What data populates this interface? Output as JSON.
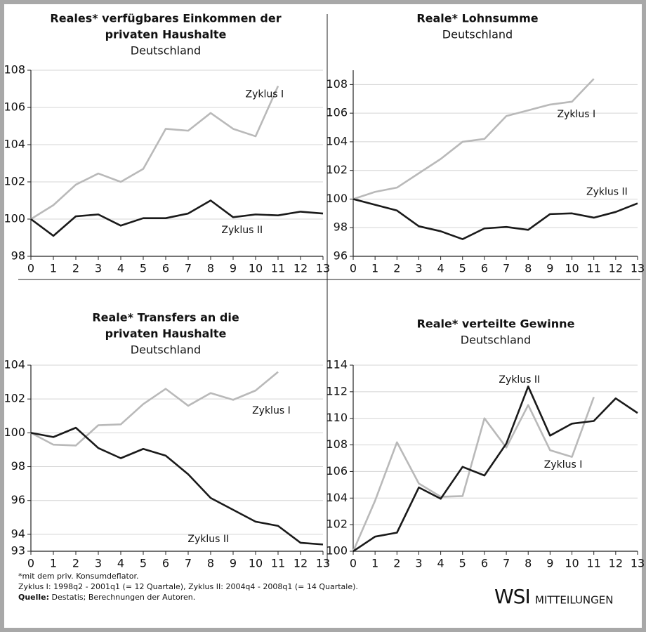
{
  "chart_data": [
    {
      "type": "line",
      "title": [
        "Reales* verfügbares Einkommen der",
        "privaten Haushalte"
      ],
      "subtitle": "Deutschland",
      "x": [
        0,
        1,
        2,
        3,
        4,
        5,
        6,
        7,
        8,
        9,
        10,
        11,
        12,
        13
      ],
      "series": [
        {
          "name": "Zyklus I",
          "color": "#b9b9b9",
          "values": [
            100,
            100.75,
            101.85,
            102.45,
            102,
            102.7,
            104.85,
            104.75,
            105.7,
            104.85,
            104.45,
            107.15,
            null,
            null
          ]
        },
        {
          "name": "Zyklus II",
          "color": "#1a1a1a",
          "values": [
            100,
            99.1,
            100.15,
            100.25,
            99.65,
            100.05,
            100.05,
            100.3,
            101,
            100.1,
            100.25,
            100.2,
            100.4,
            100.3
          ]
        }
      ],
      "xlim": [
        0,
        13
      ],
      "xticks": [
        0,
        1,
        2,
        3,
        4,
        5,
        6,
        7,
        8,
        9,
        10,
        11,
        12,
        13
      ],
      "ylim": [
        98,
        108
      ],
      "yticks": [
        98,
        100,
        102,
        104,
        106,
        108
      ],
      "grid": true
    },
    {
      "type": "line",
      "title": [
        "Reale* Lohnsumme"
      ],
      "subtitle": "Deutschland",
      "x": [
        0,
        1,
        2,
        3,
        4,
        5,
        6,
        7,
        8,
        9,
        10,
        11,
        12,
        13
      ],
      "series": [
        {
          "name": "Zyklus I",
          "color": "#b9b9b9",
          "values": [
            100,
            100.5,
            100.8,
            101.8,
            102.8,
            104,
            104.2,
            105.8,
            106.2,
            106.6,
            106.8,
            108.4,
            null,
            null
          ]
        },
        {
          "name": "Zyklus II",
          "color": "#1a1a1a",
          "values": [
            100,
            99.6,
            99.2,
            98.1,
            97.75,
            97.2,
            97.95,
            98.05,
            97.85,
            98.95,
            99,
            98.7,
            99.1,
            99.7
          ]
        }
      ],
      "xlim": [
        0,
        13
      ],
      "xticks": [
        0,
        1,
        2,
        3,
        4,
        5,
        6,
        7,
        8,
        9,
        10,
        11,
        12,
        13
      ],
      "ylim": [
        96,
        109
      ],
      "yticks": [
        96,
        98,
        100,
        102,
        104,
        106,
        108
      ],
      "grid": true
    },
    {
      "type": "line",
      "title": [
        "Reale* Transfers an die",
        "privaten Haushalte"
      ],
      "subtitle": "Deutschland",
      "x": [
        0,
        1,
        2,
        3,
        4,
        5,
        6,
        7,
        8,
        9,
        10,
        11,
        12,
        13
      ],
      "series": [
        {
          "name": "Zyklus I",
          "color": "#b9b9b9",
          "values": [
            100,
            99.3,
            99.25,
            100.45,
            100.5,
            101.7,
            102.6,
            101.6,
            102.35,
            101.95,
            102.5,
            103.6,
            null,
            null
          ]
        },
        {
          "name": "Zyklus II",
          "color": "#1a1a1a",
          "values": [
            100,
            99.75,
            100.3,
            99.1,
            98.5,
            99.05,
            98.65,
            97.55,
            96.15,
            95.45,
            94.75,
            94.5,
            93.5,
            93.4
          ]
        }
      ],
      "xlim": [
        0,
        13
      ],
      "xticks": [
        0,
        1,
        2,
        3,
        4,
        5,
        6,
        7,
        8,
        9,
        10,
        11,
        12,
        13
      ],
      "ylim": [
        93,
        104
      ],
      "yticks": [
        93,
        94,
        96,
        98,
        100,
        102,
        104
      ],
      "grid": true
    },
    {
      "type": "line",
      "title": [
        "Reale* verteilte Gewinne"
      ],
      "subtitle": "Deutschland",
      "x": [
        0,
        1,
        2,
        3,
        4,
        5,
        6,
        7,
        8,
        9,
        10,
        11,
        12,
        13
      ],
      "series": [
        {
          "name": "Zyklus I",
          "color": "#b9b9b9",
          "values": [
            100,
            103.8,
            108.2,
            105.1,
            104.1,
            104.15,
            110,
            107.8,
            111,
            107.6,
            107.1,
            111.6,
            null,
            null
          ]
        },
        {
          "name": "Zyklus II",
          "color": "#1a1a1a",
          "values": [
            100,
            101.1,
            101.4,
            104.8,
            103.95,
            106.35,
            105.7,
            108.1,
            112.4,
            108.7,
            109.6,
            109.8,
            111.5,
            110.4
          ]
        }
      ],
      "xlim": [
        0,
        13
      ],
      "xticks": [
        0,
        1,
        2,
        3,
        4,
        5,
        6,
        7,
        8,
        9,
        10,
        11,
        12,
        13
      ],
      "ylim": [
        100,
        114
      ],
      "yticks": [
        100,
        102,
        104,
        106,
        108,
        110,
        112,
        114
      ],
      "grid": true
    }
  ],
  "footnotes": [
    "*mit dem priv. Konsumdeflator.",
    "Zyklus I: 1998q2 - 2001q1 (= 12 Quartale),  Zyklus II: 2004q4 - 2008q1 (= 14 Quartale)."
  ],
  "source_label": "Quelle:",
  "source_text": " Destatis; Berechnungen der Autoren.",
  "logo": {
    "mark": "WSI",
    "text": "MITTEILUNGEN"
  }
}
